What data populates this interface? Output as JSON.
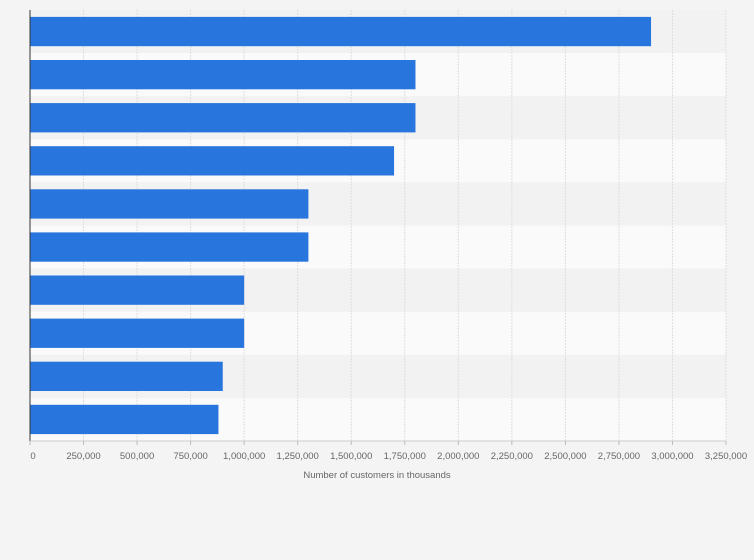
{
  "chart_data": {
    "type": "bar",
    "orientation": "horizontal",
    "title": "",
    "xlabel": "Number of customers in thousands",
    "ylabel": "",
    "categories": [
      "",
      "",
      "",
      "",
      "",
      "",
      "",
      "",
      "",
      ""
    ],
    "values": [
      2900000,
      1800000,
      1800000,
      1700000,
      1300000,
      1300000,
      1000000,
      1000000,
      900000,
      880000
    ],
    "xlim": [
      0,
      3250000
    ],
    "ticks": [
      0,
      250000,
      500000,
      750000,
      1000000,
      1250000,
      1500000,
      1750000,
      2000000,
      2250000,
      2500000,
      2750000,
      3000000,
      3250000
    ],
    "tick_labels": [
      "0",
      "250,000",
      "500,000",
      "750,000",
      "1,000,000",
      "1,250,000",
      "1,500,000",
      "1,750,000",
      "2,000,000",
      "2,250,000",
      "2,500,000",
      "2,750,000",
      "3,000,000",
      "3,250,000"
    ],
    "grid": true,
    "legend": "none",
    "colors": {
      "bar": "#2876dd",
      "background": "#f4f4f4",
      "band_light": "#fafafa",
      "band_dark": "#f2f2f2",
      "grid": "#dedede",
      "axis": "#333333",
      "text": "#666666"
    }
  }
}
